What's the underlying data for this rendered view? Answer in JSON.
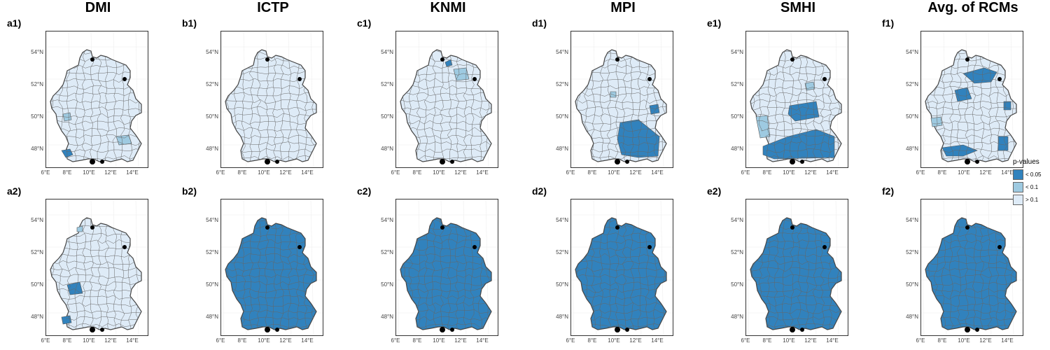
{
  "models": [
    "DMI",
    "ICTP",
    "KNMI",
    "MPI",
    "SMHI",
    "Avg. of RCMs"
  ],
  "row1_labels": [
    "a1)",
    "b1)",
    "c1)",
    "d1)",
    "e1)",
    "f1)"
  ],
  "row2_labels": [
    "a2)",
    "b2)",
    "c2)",
    "d2)",
    "e2)",
    "f2)"
  ],
  "y_ticks": [
    "54°N",
    "52°N",
    "50°N",
    "48°N"
  ],
  "x_ticks": [
    "6°E",
    "8°E",
    "10°E",
    "12°E",
    "14°E"
  ],
  "legend": {
    "title": "p-values",
    "items": [
      {
        "label": "< 0.05",
        "color": "#3182bd"
      },
      {
        "label": "< 0.1",
        "color": "#9ecae1"
      },
      {
        "label": "> 0.1",
        "color": "#deebf7"
      }
    ]
  },
  "panels": {
    "row1": [
      {
        "base": "> 0.1",
        "significant_regions": [
          "southwest edge (< 0.05)",
          "south-east (< 0.1)"
        ]
      },
      {
        "base": "> 0.1",
        "significant_regions": []
      },
      {
        "base": "> 0.1",
        "significant_regions": [
          "north-east (< 0.05, < 0.1)"
        ]
      },
      {
        "base": "> 0.1",
        "significant_regions": [
          "south-east Bavaria (< 0.05)",
          "east (< 0.05)"
        ]
      },
      {
        "base": "> 0.1",
        "significant_regions": [
          "south (< 0.05)",
          "central-east (< 0.05)",
          "west (< 0.1)"
        ]
      },
      {
        "base": "> 0.1",
        "significant_regions": [
          "north (< 0.05)",
          "central (< 0.05)",
          "south (< 0.05)"
        ]
      }
    ],
    "row2": [
      {
        "base": "> 0.1",
        "significant_regions": [
          "southwest (< 0.05)"
        ]
      },
      {
        "base": "< 0.05",
        "significant_regions": [
          "entire country"
        ]
      },
      {
        "base": "< 0.05",
        "significant_regions": [
          "entire country"
        ]
      },
      {
        "base": "< 0.05",
        "significant_regions": [
          "entire country"
        ]
      },
      {
        "base": "< 0.05",
        "significant_regions": [
          "entire country"
        ]
      },
      {
        "base": "< 0.05",
        "significant_regions": [
          "entire country"
        ]
      }
    ]
  }
}
